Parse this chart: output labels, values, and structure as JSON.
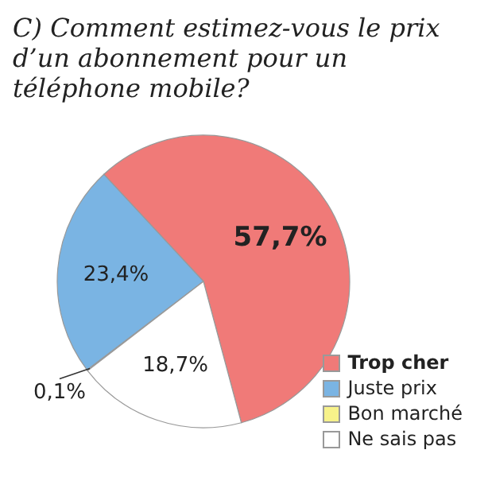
{
  "chart_data": {
    "type": "pie",
    "title": "C) Comment estimez-vous le prix d’un abonnement pour un téléphone mobile?",
    "categories": [
      "Trop cher",
      "Juste prix",
      "Bon marché",
      "Ne sais pas"
    ],
    "values": [
      57.7,
      23.4,
      0.1,
      18.7
    ],
    "colors": [
      "#f07a78",
      "#7ab4e3",
      "#f7f28a",
      "#ffffff"
    ],
    "value_labels": [
      "57,7%",
      "23,4%",
      "0,1%",
      "18,7%"
    ],
    "legend": "bottom right"
  }
}
